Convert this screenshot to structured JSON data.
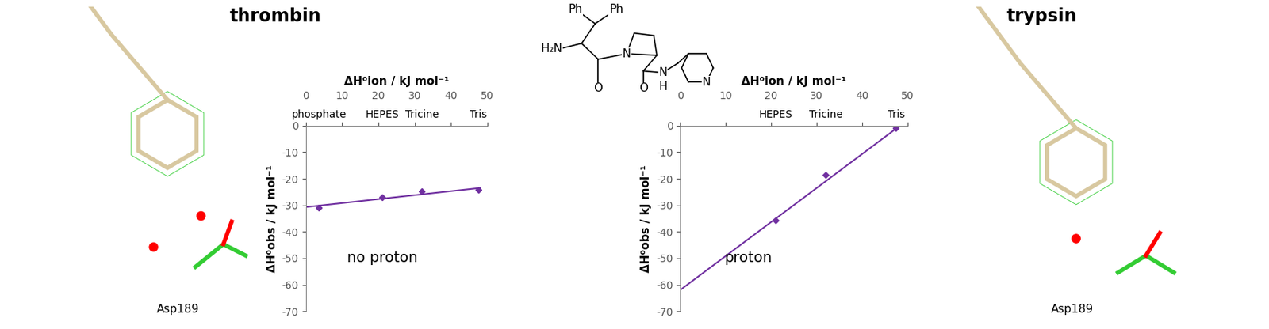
{
  "chart_data": [
    {
      "type": "scatter",
      "x_label": "ΔH⁰ion / kJ mol⁻¹",
      "y_label": "ΔH⁰obs / kJ mol⁻¹",
      "x": [
        3.6,
        21,
        32,
        47.5
      ],
      "values": [
        -31,
        -27,
        -24.7,
        -24.2
      ],
      "point_labels": [
        "phosphate",
        "HEPES",
        "Tricine",
        "Tris"
      ],
      "fit": {
        "x": [
          0,
          48
        ],
        "values": [
          -30.7,
          -23.5
        ]
      },
      "annotation": {
        "text": "no proton",
        "x": 21,
        "y": -50
      },
      "color": "#7030a0",
      "marker": "diamond",
      "line_style": "solid",
      "xlim": [
        0,
        50
      ],
      "xticks": [
        0,
        10,
        20,
        30,
        40,
        50
      ],
      "ylim": [
        -70,
        0
      ],
      "yticks": [
        -70,
        -60,
        -50,
        -40,
        -30,
        -20,
        -10,
        0
      ],
      "grid": false
    },
    {
      "type": "scatter",
      "x_label": "ΔH⁰ion / kJ mol⁻¹",
      "y_label": "ΔH⁰obs / kJ mol⁻¹",
      "x": [
        21,
        32,
        47.5
      ],
      "values": [
        -35.7,
        -18.5,
        -1
      ],
      "point_labels": [
        "HEPES",
        "Tricine",
        "Tris"
      ],
      "fit": {
        "x": [
          0,
          48
        ],
        "values": [
          -62,
          -0.5
        ]
      },
      "annotation": {
        "text": "proton",
        "x": 15,
        "y": -50
      },
      "color": "#7030a0",
      "marker": "diamond",
      "line_style": "solid",
      "xlim": [
        0,
        50
      ],
      "xticks": [
        0,
        10,
        20,
        30,
        40,
        50
      ],
      "ylim": [
        -70,
        0
      ],
      "yticks": [
        -70,
        -60,
        -50,
        -40,
        -30,
        -20,
        -10,
        0
      ],
      "grid": false
    }
  ],
  "structures": [
    {
      "title": "thrombin",
      "residue": "Asp189"
    },
    {
      "title": "trypsin",
      "residue": "Asp189"
    }
  ],
  "molecule_labels": [
    "Ph",
    "Ph",
    "H₂N",
    "O",
    "N",
    "O",
    "N",
    "H",
    "N"
  ]
}
